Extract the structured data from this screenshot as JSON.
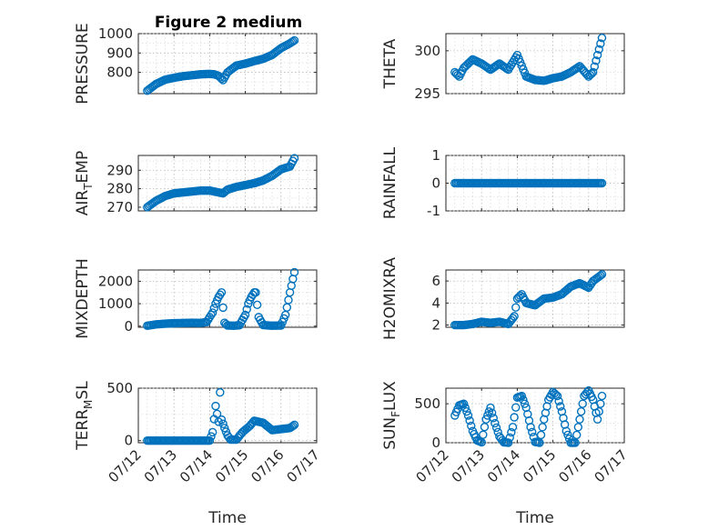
{
  "figure": {
    "title": "Figure 2 medium",
    "accent": "#0072BD"
  },
  "x_domain": [
    "07/12",
    "07/17"
  ],
  "x_ticks": [
    "07/12",
    "07/13",
    "07/14",
    "07/15",
    "07/16",
    "07/17"
  ],
  "chart_data": [
    {
      "type": "scatter",
      "name": "pressure",
      "ylabel": "PRESSURE",
      "ylim": [
        690,
        1000
      ],
      "yticks": [
        800,
        900,
        1000
      ],
      "xlabel": "",
      "grid": true,
      "minor_grid": true,
      "x": [
        "07/12 06:00",
        "07/12 12:00",
        "07/12 18:00",
        "07/13 00:00",
        "07/13 06:00",
        "07/13 12:00",
        "07/13 18:00",
        "07/14 00:00",
        "07/14 03:00",
        "07/14 06:00",
        "07/14 09:00",
        "07/14 12:00",
        "07/14 18:00",
        "07/15 00:00",
        "07/15 06:00",
        "07/15 12:00",
        "07/15 18:00",
        "07/16 00:00",
        "07/16 06:00",
        "07/16 09:00"
      ],
      "y": [
        705,
        740,
        762,
        772,
        780,
        785,
        790,
        792,
        790,
        782,
        760,
        800,
        835,
        845,
        858,
        870,
        890,
        925,
        950,
        965
      ]
    },
    {
      "type": "scatter",
      "name": "theta",
      "ylabel": "THETA",
      "ylim": [
        295,
        302
      ],
      "yticks": [
        295,
        300
      ],
      "xlabel": "",
      "grid": true,
      "minor_grid": true,
      "x": [
        "07/12 06:00",
        "07/12 09:00",
        "07/12 12:00",
        "07/12 18:00",
        "07/13 00:00",
        "07/13 06:00",
        "07/13 12:00",
        "07/13 18:00",
        "07/14 00:00",
        "07/14 06:00",
        "07/14 12:00",
        "07/14 18:00",
        "07/15 00:00",
        "07/15 06:00",
        "07/15 12:00",
        "07/15 18:00",
        "07/16 00:00",
        "07/16 03:00",
        "07/16 06:00",
        "07/16 09:00"
      ],
      "y": [
        297.5,
        297.0,
        298.0,
        299.0,
        298.5,
        297.8,
        298.5,
        297.8,
        299.5,
        297.0,
        296.6,
        296.5,
        296.8,
        297.0,
        297.5,
        298.2,
        297.0,
        297.5,
        299.5,
        301.5
      ]
    },
    {
      "type": "scatter",
      "name": "air_temp",
      "ylabel": "AIR_TEMP",
      "ylim": [
        268,
        298
      ],
      "yticks": [
        270,
        280,
        290
      ],
      "xlabel": "",
      "grid": true,
      "minor_grid": true,
      "x": [
        "07/12 06:00",
        "07/12 12:00",
        "07/12 18:00",
        "07/13 00:00",
        "07/13 06:00",
        "07/13 12:00",
        "07/13 18:00",
        "07/14 00:00",
        "07/14 06:00",
        "07/14 09:00",
        "07/14 12:00",
        "07/14 18:00",
        "07/15 00:00",
        "07/15 06:00",
        "07/15 12:00",
        "07/15 18:00",
        "07/16 00:00",
        "07/16 06:00",
        "07/16 09:00"
      ],
      "y": [
        270,
        273.5,
        276,
        277.5,
        278,
        278.5,
        279,
        279,
        278,
        277.5,
        279.5,
        281,
        282,
        283,
        284.5,
        287,
        290.5,
        292,
        296.5
      ]
    },
    {
      "type": "scatter",
      "name": "rainfall",
      "ylabel": "RAINFALL",
      "ylim": [
        -1,
        1
      ],
      "yticks": [
        -1,
        0,
        1
      ],
      "xlabel": "",
      "grid": true,
      "minor_grid": true,
      "x": [
        "07/12 06:00",
        "07/16 09:00"
      ],
      "y": [
        0,
        0
      ]
    },
    {
      "type": "scatter",
      "name": "mixdepth",
      "ylabel": "MIXDEPTH",
      "ylim": [
        -50,
        2500
      ],
      "yticks": [
        0,
        1000,
        2000
      ],
      "xlabel": "",
      "grid": true,
      "minor_grid": true,
      "x": [
        "07/12 06:00",
        "07/12 12:00",
        "07/12 18:00",
        "07/13 00:00",
        "07/13 06:00",
        "07/13 12:00",
        "07/13 18:00",
        "07/13 22:00",
        "07/14 00:00",
        "07/14 02:00",
        "07/14 04:00",
        "07/14 06:00",
        "07/14 08:00",
        "07/14 10:00",
        "07/14 12:00",
        "07/14 16:00",
        "07/14 20:00",
        "07/15 00:00",
        "07/15 02:00",
        "07/15 04:00",
        "07/15 06:00",
        "07/15 07:00",
        "07/15 09:00",
        "07/15 12:00",
        "07/15 18:00",
        "07/16 00:00",
        "07/16 03:00",
        "07/16 06:00",
        "07/16 09:00"
      ],
      "y": [
        20,
        80,
        110,
        130,
        140,
        150,
        145,
        180,
        400,
        600,
        1000,
        1300,
        1500,
        150,
        30,
        20,
        40,
        500,
        1000,
        1300,
        1500,
        1500,
        400,
        50,
        20,
        30,
        500,
        1500,
        2400
      ]
    },
    {
      "type": "scatter",
      "name": "h2omixra",
      "ylabel": "H2OMIXRA",
      "ylim": [
        1.8,
        7
      ],
      "yticks": [
        2,
        4,
        6
      ],
      "xlabel": "",
      "grid": true,
      "minor_grid": true,
      "x": [
        "07/12 06:00",
        "07/12 12:00",
        "07/12 18:00",
        "07/13 00:00",
        "07/13 06:00",
        "07/13 12:00",
        "07/13 18:00",
        "07/13 22:00",
        "07/14 00:00",
        "07/14 03:00",
        "07/14 06:00",
        "07/14 12:00",
        "07/14 18:00",
        "07/15 00:00",
        "07/15 06:00",
        "07/15 12:00",
        "07/15 18:00",
        "07/16 00:00",
        "07/16 03:00",
        "07/16 06:00",
        "07/16 09:00"
      ],
      "y": [
        2.0,
        2.0,
        2.1,
        2.3,
        2.2,
        2.3,
        2.1,
        2.8,
        4.4,
        4.8,
        4.0,
        3.8,
        4.4,
        4.5,
        4.8,
        5.5,
        5.8,
        5.4,
        6.0,
        6.3,
        6.6
      ]
    },
    {
      "type": "scatter",
      "name": "terr_msl",
      "ylabel": "TERR_MSL",
      "ylim": [
        -20,
        500
      ],
      "yticks": [
        0,
        500
      ],
      "xlabel": "Time",
      "grid": true,
      "minor_grid": true,
      "x": [
        "07/12 06:00",
        "07/12 12:00",
        "07/13 00:00",
        "07/13 12:00",
        "07/14 00:00",
        "07/14 02:00",
        "07/14 04:00",
        "07/14 06:00",
        "07/14 07:00",
        "07/14 08:00",
        "07/14 10:00",
        "07/14 12:00",
        "07/14 14:00",
        "07/14 18:00",
        "07/14 22:00",
        "07/15 03:00",
        "07/15 06:00",
        "07/15 12:00",
        "07/15 18:00",
        "07/16 00:00",
        "07/16 06:00",
        "07/16 09:00"
      ],
      "y": [
        0,
        0,
        0,
        0,
        0,
        80,
        330,
        180,
        460,
        200,
        120,
        50,
        10,
        10,
        80,
        140,
        190,
        170,
        100,
        110,
        120,
        150
      ]
    },
    {
      "type": "scatter",
      "name": "sun_flux",
      "ylabel": "SUN_FLUX",
      "ylim": [
        0,
        700
      ],
      "yticks": [
        0,
        500
      ],
      "xlabel": "Time",
      "grid": true,
      "minor_grid": true,
      "x": [
        "07/12 06:00",
        "07/12 09:00",
        "07/12 12:00",
        "07/12 15:00",
        "07/12 18:00",
        "07/12 21:00",
        "07/13 00:00",
        "07/13 03:00",
        "07/13 06:00",
        "07/13 09:00",
        "07/13 12:00",
        "07/13 15:00",
        "07/13 18:00",
        "07/13 21:00",
        "07/14 00:00",
        "07/14 03:00",
        "07/14 06:00",
        "07/14 09:00",
        "07/14 12:00",
        "07/14 15:00",
        "07/14 18:00",
        "07/14 21:00",
        "07/15 00:00",
        "07/15 03:00",
        "07/15 06:00",
        "07/15 09:00",
        "07/15 12:00",
        "07/15 15:00",
        "07/15 18:00",
        "07/15 21:00",
        "07/16 00:00",
        "07/16 03:00",
        "07/16 06:00",
        "07/16 09:00"
      ],
      "y": [
        350,
        480,
        500,
        350,
        150,
        30,
        5,
        300,
        450,
        250,
        80,
        5,
        0,
        200,
        580,
        600,
        450,
        200,
        10,
        0,
        300,
        550,
        650,
        600,
        400,
        150,
        0,
        0,
        300,
        600,
        670,
        550,
        300,
        600
      ]
    }
  ]
}
